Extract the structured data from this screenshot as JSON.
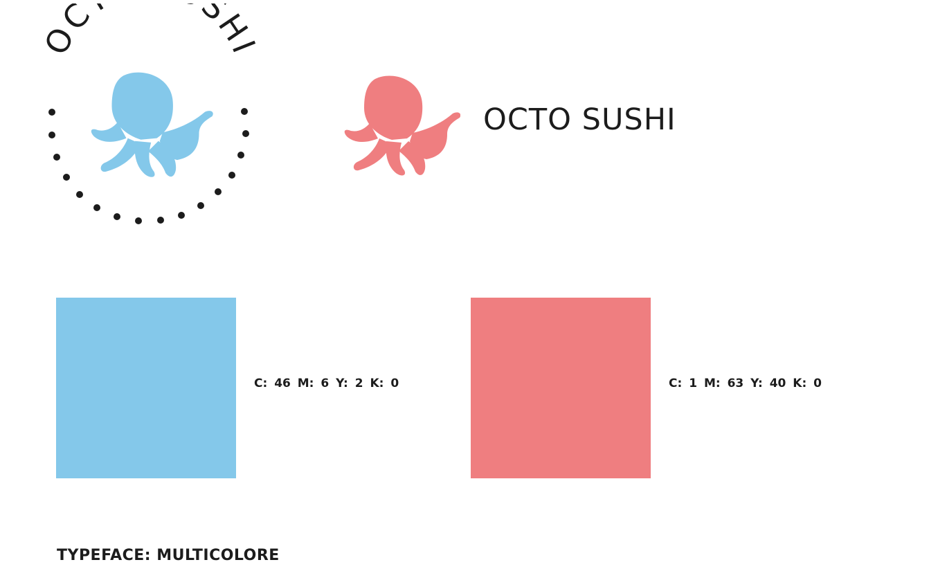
{
  "brand": {
    "name": "OCTO SUSHI",
    "badge_text": "OCTO SUSHI",
    "wordmark": "OCTO SUSHI"
  },
  "palette": [
    {
      "name": "blue",
      "hex": "#84c8ea",
      "cmyk_label": "C: 46  M: 6  Y: 2  K: 0"
    },
    {
      "name": "pink",
      "hex": "#ef7e80",
      "cmyk_label": "C: 1  M: 63  Y: 40  K: 0"
    }
  ],
  "typeface_label": "TYPEFACE: MULTICOLORE",
  "icons": {
    "badge_mark": "octopus-icon",
    "horizontal_mark": "octopus-icon"
  },
  "colors": {
    "text": "#1c1c1c",
    "background": "#ffffff"
  }
}
